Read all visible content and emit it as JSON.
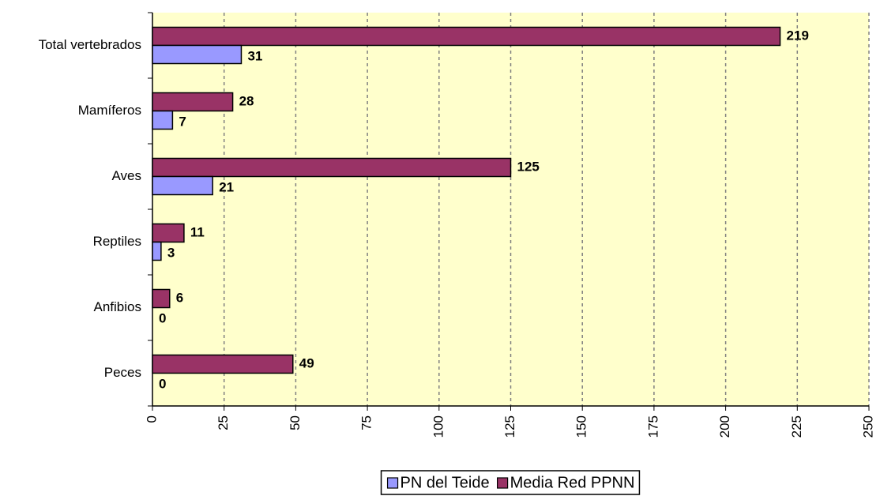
{
  "chart_data": {
    "type": "bar",
    "orientation": "horizontal",
    "categories": [
      "Total vertebrados",
      "Mamíferos",
      "Aves",
      "Reptiles",
      "Anfibios",
      "Peces"
    ],
    "series": [
      {
        "name": "PN del Teide",
        "color": "#9999ff",
        "label_color": "#000080",
        "values": [
          31,
          7,
          21,
          3,
          0,
          0
        ]
      },
      {
        "name": "Media Red PPNN",
        "color": "#993366",
        "label_color": "#800000",
        "values": [
          219,
          28,
          125,
          11,
          6,
          49
        ]
      }
    ],
    "xlim": [
      0,
      250
    ],
    "xticks": [
      0,
      25,
      50,
      75,
      100,
      125,
      150,
      175,
      200,
      225,
      250
    ],
    "grid": true,
    "plot_background": "#ffffcc",
    "legend": "bottom"
  }
}
